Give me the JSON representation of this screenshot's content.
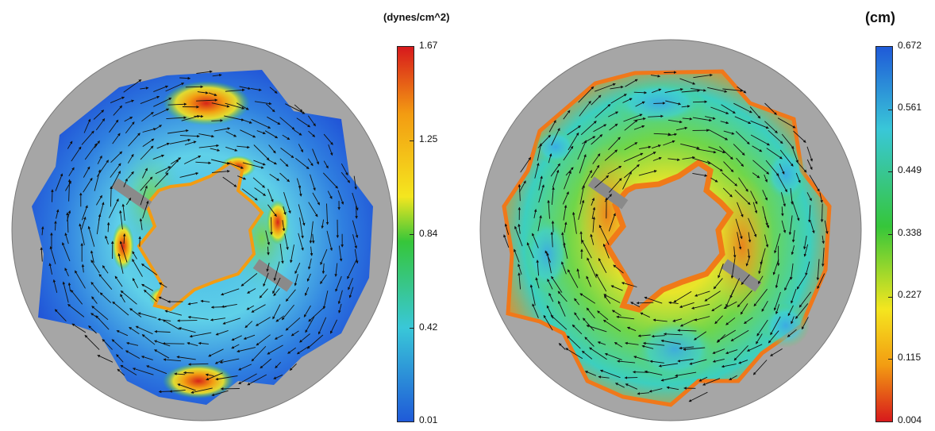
{
  "panels": [
    {
      "id": "shear-stress",
      "colorbar": {
        "unit": "(dynes/cm^2)",
        "ticks": [
          "1.67",
          "1.25",
          "0.84",
          "0.42",
          "0.01"
        ],
        "colormap": [
          "#d7191c",
          "#f39c12",
          "#f4e61f",
          "#36c63a",
          "#39c7d8",
          "#1f5ad8"
        ]
      }
    },
    {
      "id": "displacement",
      "colorbar": {
        "unit": "(cm)",
        "ticks": [
          "0.672",
          "0.561",
          "0.449",
          "0.338",
          "0.227",
          "0.115",
          "0.004"
        ],
        "colormap": [
          "#1f5ad8",
          "#39c7d8",
          "#36c63a",
          "#f4e61f",
          "#f39c12",
          "#d7191c"
        ]
      }
    }
  ],
  "colors": {
    "plate": "#a6a6a6",
    "arrow": "#111111"
  }
}
